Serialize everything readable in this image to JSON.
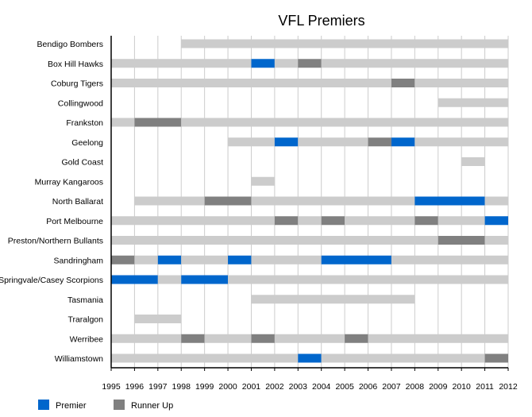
{
  "chart_data": {
    "type": "timeline",
    "title": "VFL Premiers",
    "xlabel": "",
    "ylabel": "",
    "xlim": [
      1995,
      2012
    ],
    "x_ticks": [
      "1995",
      "1996",
      "1997",
      "1998",
      "1999",
      "2000",
      "2001",
      "2002",
      "2003",
      "2004",
      "2005",
      "2006",
      "2007",
      "2008",
      "2009",
      "2010",
      "2011",
      "2012"
    ],
    "grid": true,
    "legend_position": "bottom-left",
    "legend": [
      {
        "key": "premier",
        "label": "Premier"
      },
      {
        "key": "runner",
        "label": "Runner Up"
      }
    ],
    "colors": {
      "participant": "#cccccc",
      "premier": "#0066cc",
      "runner": "#808080",
      "grid": "#cccccc",
      "axis": "#000000"
    },
    "teams": [
      {
        "name": "Bendigo Bombers",
        "segments": [
          [
            1998,
            2012,
            "participant"
          ]
        ]
      },
      {
        "name": "Box Hill Hawks",
        "segments": [
          [
            1995,
            2001,
            "participant"
          ],
          [
            2001,
            2002,
            "premier"
          ],
          [
            2002,
            2003,
            "participant"
          ],
          [
            2003,
            2004,
            "runner"
          ],
          [
            2004,
            2012,
            "participant"
          ]
        ]
      },
      {
        "name": "Coburg Tigers",
        "segments": [
          [
            1995,
            2007,
            "participant"
          ],
          [
            2007,
            2008,
            "runner"
          ],
          [
            2008,
            2012,
            "participant"
          ]
        ]
      },
      {
        "name": "Collingwood",
        "segments": [
          [
            2009,
            2012,
            "participant"
          ]
        ]
      },
      {
        "name": "Frankston",
        "segments": [
          [
            1995,
            1996,
            "participant"
          ],
          [
            1996,
            1998,
            "runner"
          ],
          [
            1998,
            2012,
            "participant"
          ]
        ]
      },
      {
        "name": "Geelong",
        "segments": [
          [
            2000,
            2002,
            "participant"
          ],
          [
            2002,
            2003,
            "premier"
          ],
          [
            2003,
            2006,
            "participant"
          ],
          [
            2006,
            2007,
            "runner"
          ],
          [
            2007,
            2008,
            "premier"
          ],
          [
            2008,
            2012,
            "participant"
          ]
        ]
      },
      {
        "name": "Gold Coast",
        "segments": [
          [
            2010,
            2011,
            "participant"
          ]
        ]
      },
      {
        "name": "Murray Kangaroos",
        "segments": [
          [
            2001,
            2002,
            "participant"
          ]
        ]
      },
      {
        "name": "North Ballarat",
        "segments": [
          [
            1996,
            1999,
            "participant"
          ],
          [
            1999,
            2001,
            "runner"
          ],
          [
            2001,
            2008,
            "participant"
          ],
          [
            2008,
            2011,
            "premier"
          ],
          [
            2011,
            2012,
            "participant"
          ]
        ]
      },
      {
        "name": "Port Melbourne",
        "segments": [
          [
            1995,
            2002,
            "participant"
          ],
          [
            2002,
            2003,
            "runner"
          ],
          [
            2003,
            2004,
            "participant"
          ],
          [
            2004,
            2005,
            "runner"
          ],
          [
            2005,
            2008,
            "participant"
          ],
          [
            2008,
            2009,
            "runner"
          ],
          [
            2009,
            2011,
            "participant"
          ],
          [
            2011,
            2012,
            "premier"
          ]
        ]
      },
      {
        "name": "Preston/Northern Bullants",
        "segments": [
          [
            1995,
            2009,
            "participant"
          ],
          [
            2009,
            2011,
            "runner"
          ],
          [
            2011,
            2012,
            "participant"
          ]
        ]
      },
      {
        "name": "Sandringham",
        "segments": [
          [
            1995,
            1996,
            "runner"
          ],
          [
            1996,
            1997,
            "participant"
          ],
          [
            1997,
            1998,
            "premier"
          ],
          [
            1998,
            2000,
            "participant"
          ],
          [
            2000,
            2001,
            "premier"
          ],
          [
            2001,
            2004,
            "participant"
          ],
          [
            2004,
            2007,
            "premier"
          ],
          [
            2007,
            2012,
            "participant"
          ]
        ]
      },
      {
        "name": "Springvale/Casey Scorpions",
        "segments": [
          [
            1995,
            1997,
            "premier"
          ],
          [
            1997,
            1998,
            "participant"
          ],
          [
            1998,
            2000,
            "premier"
          ],
          [
            2000,
            2012,
            "participant"
          ]
        ]
      },
      {
        "name": "Tasmania",
        "segments": [
          [
            2001,
            2008,
            "participant"
          ]
        ]
      },
      {
        "name": "Traralgon",
        "segments": [
          [
            1996,
            1998,
            "participant"
          ]
        ]
      },
      {
        "name": "Werribee",
        "segments": [
          [
            1995,
            1998,
            "participant"
          ],
          [
            1998,
            1999,
            "runner"
          ],
          [
            1999,
            2001,
            "participant"
          ],
          [
            2001,
            2002,
            "runner"
          ],
          [
            2002,
            2005,
            "participant"
          ],
          [
            2005,
            2006,
            "runner"
          ],
          [
            2006,
            2012,
            "participant"
          ]
        ]
      },
      {
        "name": "Williamstown",
        "segments": [
          [
            1995,
            2003,
            "participant"
          ],
          [
            2003,
            2004,
            "premier"
          ],
          [
            2004,
            2011,
            "participant"
          ],
          [
            2011,
            2012,
            "runner"
          ]
        ]
      }
    ]
  }
}
